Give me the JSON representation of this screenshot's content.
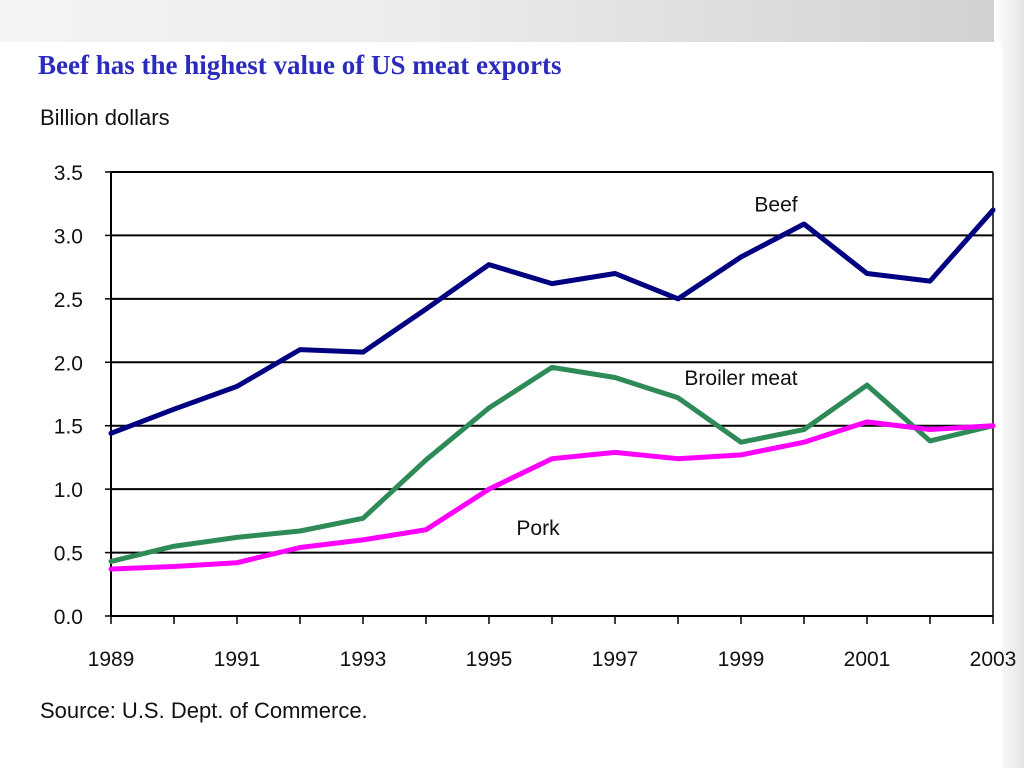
{
  "chart_data": {
    "type": "line",
    "title": "Beef has the highest value of US meat exports",
    "ylabel": "Billion dollars",
    "xlabel": "",
    "source": "Source: U.S. Dept. of Commerce.",
    "x": [
      1989,
      1990,
      1991,
      1992,
      1993,
      1994,
      1995,
      1996,
      1997,
      1998,
      1999,
      2000,
      2001,
      2002,
      2003
    ],
    "x_tick_labels": [
      "1989",
      "1991",
      "1993",
      "1995",
      "1997",
      "1999",
      "2001",
      "2003"
    ],
    "y_tick_labels": [
      "0.0",
      "0.5",
      "1.0",
      "1.5",
      "2.0",
      "2.5",
      "3.0",
      "3.5"
    ],
    "ylim": [
      0,
      3.5
    ],
    "grid": "horizontal",
    "legend": "none (series labeled inline)",
    "series": [
      {
        "name": "Beef",
        "color": "#000080",
        "values": [
          1.44,
          1.63,
          1.81,
          2.1,
          2.08,
          2.42,
          2.77,
          2.62,
          2.7,
          2.5,
          2.83,
          3.09,
          2.7,
          2.64,
          3.2
        ]
      },
      {
        "name": "Broiler meat",
        "color": "#2e8b57",
        "values": [
          0.43,
          0.55,
          0.62,
          0.67,
          0.77,
          1.23,
          1.64,
          1.96,
          1.88,
          1.72,
          1.37,
          1.47,
          1.82,
          1.38,
          1.5
        ]
      },
      {
        "name": "Pork",
        "color": "#ff00ff",
        "values": [
          0.37,
          0.39,
          0.42,
          0.54,
          0.6,
          0.68,
          1.0,
          1.24,
          1.29,
          1.24,
          1.27,
          1.37,
          1.53,
          1.47,
          1.5
        ]
      }
    ]
  }
}
